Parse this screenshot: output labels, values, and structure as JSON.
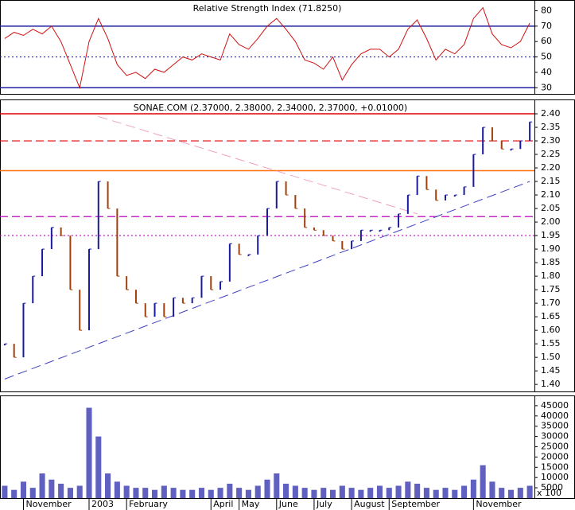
{
  "chart_data": [
    {
      "type": "line",
      "title": "Relative Strength Index (71.8250)",
      "series": [
        {
          "name": "RSI",
          "color": "#d01010",
          "values": [
            62,
            66,
            64,
            68,
            65,
            70,
            60,
            45,
            30,
            60,
            75,
            62,
            45,
            38,
            40,
            36,
            42,
            40,
            45,
            50,
            48,
            52,
            50,
            48,
            65,
            58,
            55,
            62,
            70,
            75,
            68,
            60,
            48,
            46,
            42,
            50,
            35,
            45,
            52,
            55,
            55,
            50,
            55,
            68,
            74,
            62,
            48,
            55,
            52,
            58,
            75,
            82,
            65,
            58,
            56,
            60,
            72
          ]
        }
      ],
      "ylim": [
        26,
        87
      ],
      "yticks": [
        30,
        40,
        50,
        60,
        70,
        80
      ],
      "hlines": [
        {
          "value": 70,
          "color": "#2020a0",
          "style": "solid"
        },
        {
          "value": 50,
          "color": "#2020a0",
          "style": "dotted"
        },
        {
          "value": 30,
          "color": "#2020a0",
          "style": "solid"
        }
      ]
    },
    {
      "type": "ohlc",
      "title": "SONAE.COM (2.37000, 2.38000, 2.34000, 2.37000, +0.01000)",
      "up_color": "#1a1aa0",
      "down_color": "#a0400a",
      "values": [
        1.55,
        1.5,
        1.7,
        1.8,
        1.9,
        1.98,
        1.95,
        1.75,
        1.6,
        1.9,
        2.15,
        2.05,
        1.8,
        1.75,
        1.7,
        1.65,
        1.7,
        1.65,
        1.72,
        1.7,
        1.72,
        1.8,
        1.75,
        1.78,
        1.92,
        1.88,
        1.88,
        1.95,
        2.05,
        2.15,
        2.1,
        2.05,
        1.98,
        1.97,
        1.95,
        1.93,
        1.9,
        1.93,
        1.97,
        1.97,
        1.97,
        1.98,
        2.03,
        2.1,
        2.17,
        2.12,
        2.08,
        2.1,
        2.1,
        2.13,
        2.25,
        2.35,
        2.3,
        2.27,
        2.27,
        2.3,
        2.37
      ],
      "ylim": [
        1.374,
        2.453
      ],
      "yticks": [
        {
          "value": 1.4,
          "label": "1.40"
        },
        {
          "value": 1.45,
          "label": "1.45"
        },
        {
          "value": 1.5,
          "label": "1.50"
        },
        {
          "value": 1.55,
          "label": "1.55"
        },
        {
          "value": 1.6,
          "label": "1.60"
        },
        {
          "value": 1.65,
          "label": "1.65"
        },
        {
          "value": 1.7,
          "label": "1.70"
        },
        {
          "value": 1.75,
          "label": "1.75"
        },
        {
          "value": 1.8,
          "label": "1.80"
        },
        {
          "value": 1.85,
          "label": "1.85"
        },
        {
          "value": 1.9,
          "label": "1.90"
        },
        {
          "value": 1.95,
          "label": "1.95"
        },
        {
          "value": 2.0,
          "label": "2.00"
        },
        {
          "value": 2.05,
          "label": "2.05"
        },
        {
          "value": 2.1,
          "label": "2.10"
        },
        {
          "value": 2.15,
          "label": "2.15"
        },
        {
          "value": 2.2,
          "label": "2.20"
        },
        {
          "value": 2.25,
          "label": "2.25"
        },
        {
          "value": 2.3,
          "label": "2.30"
        },
        {
          "value": 2.35,
          "label": "2.35"
        },
        {
          "value": 2.4,
          "label": "2.40"
        }
      ],
      "hlines": [
        {
          "value": 2.4,
          "color": "#e00000",
          "style": "solid"
        },
        {
          "value": 2.3,
          "color": "#e00000",
          "style": "dashed"
        },
        {
          "value": 2.19,
          "color": "#ff7010",
          "style": "solid"
        },
        {
          "value": 2.02,
          "color": "#c000c0",
          "style": "dashed"
        },
        {
          "value": 1.95,
          "color": "#c000c0",
          "style": "dotted"
        }
      ],
      "trendlines": [
        {
          "x": [
            0,
            56
          ],
          "y": [
            1.42,
            2.15
          ],
          "color": "#4040c0"
        },
        {
          "x": [
            10,
            44
          ],
          "y": [
            2.39,
            2.03
          ],
          "color": "#f0a0c0"
        }
      ]
    },
    {
      "type": "bar",
      "color": "#6060c0",
      "unit_label": "x 100",
      "categories": [
        null,
        null,
        "November",
        null,
        null,
        null,
        null,
        null,
        null,
        "2003",
        null,
        null,
        null,
        "February",
        null,
        null,
        null,
        null,
        null,
        null,
        null,
        null,
        "April",
        null,
        null,
        "May",
        null,
        null,
        null,
        "June",
        null,
        null,
        null,
        "July",
        null,
        null,
        null,
        "August",
        null,
        null,
        null,
        "September",
        null,
        null,
        null,
        null,
        null,
        null,
        null,
        null,
        "November",
        null,
        null,
        null,
        null,
        null,
        null
      ],
      "values": [
        6000,
        4000,
        8000,
        5000,
        12000,
        9000,
        7000,
        5000,
        6000,
        44000,
        30000,
        12000,
        8000,
        6000,
        5000,
        5000,
        4000,
        6000,
        5000,
        4000,
        4000,
        5000,
        4000,
        5000,
        7000,
        5000,
        4000,
        6000,
        9000,
        12000,
        7000,
        6000,
        5000,
        4000,
        5000,
        4000,
        6000,
        5000,
        4000,
        5000,
        6000,
        5000,
        6000,
        8000,
        7000,
        5000,
        4000,
        5000,
        4000,
        6000,
        9000,
        16000,
        8000,
        5000,
        4000,
        5000,
        6000
      ],
      "ylim": [
        0,
        50000
      ],
      "yticks": [
        5000,
        10000,
        15000,
        20000,
        25000,
        30000,
        35000,
        40000,
        45000
      ]
    }
  ]
}
